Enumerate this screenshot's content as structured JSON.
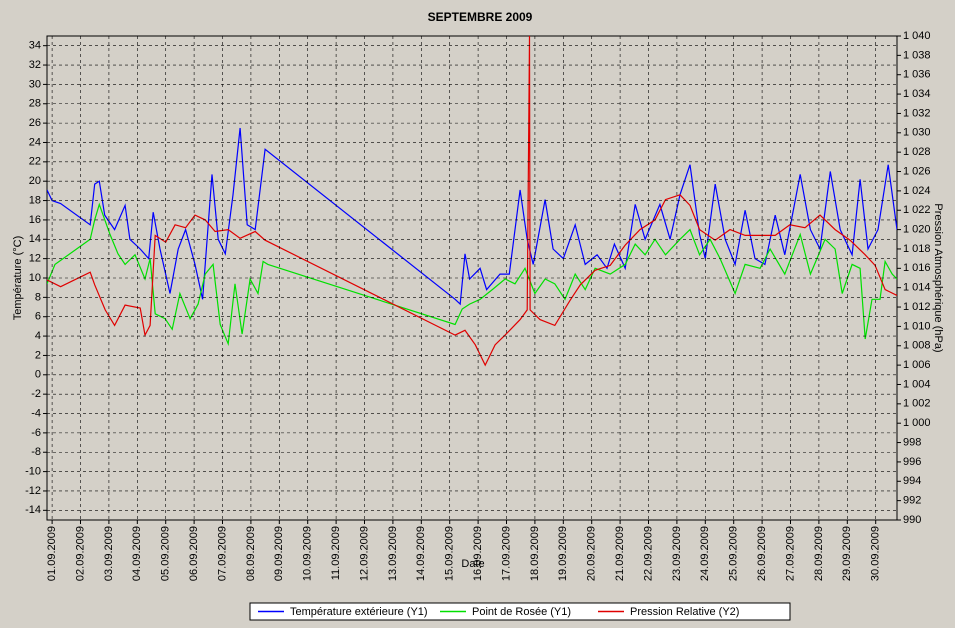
{
  "chart_data": {
    "type": "line",
    "title": "SEPTEMBRE  2009",
    "xlabel": "Date",
    "ylabel": "Température (°C)",
    "y2label": "Pression Atmosphérique (hPa)",
    "grid": true,
    "legend": "bottom",
    "xlim": [
      0.82,
      30.75
    ],
    "ylim": [
      -15,
      35
    ],
    "y2lim": [
      990,
      1040
    ],
    "xticks": [
      {
        "value": 1,
        "label": "01.09.2009"
      },
      {
        "value": 2,
        "label": "02.09.2009"
      },
      {
        "value": 3,
        "label": "03.09.2009"
      },
      {
        "value": 4,
        "label": "04.09.2009"
      },
      {
        "value": 5,
        "label": "05.09.2009"
      },
      {
        "value": 6,
        "label": "06.09.2009"
      },
      {
        "value": 7,
        "label": "07.09.2009"
      },
      {
        "value": 8,
        "label": "08.09.2009"
      },
      {
        "value": 9,
        "label": "09.09.2009"
      },
      {
        "value": 10,
        "label": "10.09.2009"
      },
      {
        "value": 11,
        "label": "11.09.2009"
      },
      {
        "value": 12,
        "label": "12.09.2009"
      },
      {
        "value": 13,
        "label": "13.09.2009"
      },
      {
        "value": 14,
        "label": "14.09.2009"
      },
      {
        "value": 15,
        "label": "15.09.2009"
      },
      {
        "value": 16,
        "label": "16.09.2009"
      },
      {
        "value": 17,
        "label": "17.09.2009"
      },
      {
        "value": 18,
        "label": "18.09.2009"
      },
      {
        "value": 19,
        "label": "19.09.2009"
      },
      {
        "value": 20,
        "label": "20.09.2009"
      },
      {
        "value": 21,
        "label": "21.09.2009"
      },
      {
        "value": 22,
        "label": "22.09.2009"
      },
      {
        "value": 23,
        "label": "23.09.2009"
      },
      {
        "value": 24,
        "label": "24.09.2009"
      },
      {
        "value": 25,
        "label": "25.09.2009"
      },
      {
        "value": 26,
        "label": "26.09.2009"
      },
      {
        "value": 27,
        "label": "27.09.2009"
      },
      {
        "value": 28,
        "label": "28.09.2009"
      },
      {
        "value": 29,
        "label": "29.09.2009"
      },
      {
        "value": 30,
        "label": "30.09.2009"
      }
    ],
    "yticks": [
      34,
      32,
      30,
      28,
      26,
      24,
      22,
      20,
      18,
      16,
      14,
      12,
      10,
      8,
      6,
      4,
      2,
      0,
      -2,
      -4,
      -6,
      -8,
      -10,
      -12,
      -14
    ],
    "y2ticks": [
      {
        "value": 1040,
        "label": "1 040"
      },
      {
        "value": 1038,
        "label": "1 038"
      },
      {
        "value": 1036,
        "label": "1 036"
      },
      {
        "value": 1034,
        "label": "1 034"
      },
      {
        "value": 1032,
        "label": "1 032"
      },
      {
        "value": 1030,
        "label": "1 030"
      },
      {
        "value": 1028,
        "label": "1 028"
      },
      {
        "value": 1026,
        "label": "1 026"
      },
      {
        "value": 1024,
        "label": "1 024"
      },
      {
        "value": 1022,
        "label": "1 022"
      },
      {
        "value": 1020,
        "label": "1 020"
      },
      {
        "value": 1018,
        "label": "1 018"
      },
      {
        "value": 1016,
        "label": "1 016"
      },
      {
        "value": 1014,
        "label": "1 014"
      },
      {
        "value": 1012,
        "label": "1 012"
      },
      {
        "value": 1010,
        "label": "1 010"
      },
      {
        "value": 1008,
        "label": "1 008"
      },
      {
        "value": 1006,
        "label": "1 006"
      },
      {
        "value": 1004,
        "label": "1 004"
      },
      {
        "value": 1002,
        "label": "1 002"
      },
      {
        "value": 1000,
        "label": "1 000"
      },
      998,
      996,
      994,
      992,
      990
    ],
    "series": [
      {
        "name": "Température extérieure (Y1)",
        "color": "#0000ff",
        "axis": "y",
        "x": [
          0.82,
          1.0,
          1.3,
          2.34,
          2.5,
          2.66,
          2.85,
          3.2,
          3.57,
          3.74,
          4.1,
          4.4,
          4.56,
          4.8,
          5.15,
          5.44,
          5.7,
          6.03,
          6.3,
          6.63,
          6.85,
          7.1,
          7.37,
          7.62,
          7.87,
          8.15,
          8.5,
          15.19,
          15.37,
          15.54,
          15.7,
          16.07,
          16.3,
          16.77,
          17.1,
          17.48,
          17.73,
          17.94,
          18.36,
          18.64,
          19.0,
          19.42,
          19.77,
          20.19,
          20.54,
          20.8,
          21.18,
          21.53,
          21.88,
          22.4,
          22.76,
          23.11,
          23.46,
          23.8,
          24.0,
          24.35,
          24.7,
          25.05,
          25.4,
          25.75,
          26.1,
          26.46,
          26.8,
          27.34,
          27.7,
          28.04,
          28.4,
          28.75,
          29.17,
          29.45,
          29.73,
          30.08,
          30.44,
          30.75
        ],
        "values": [
          19.1,
          18,
          17.7,
          15.5,
          19.7,
          20,
          16.5,
          15,
          17.5,
          14,
          13,
          12,
          16.8,
          13,
          8.4,
          13,
          15,
          11.4,
          7.8,
          20.7,
          14,
          12.5,
          18.6,
          25.5,
          15.5,
          15,
          23.3,
          7.8,
          7.3,
          12.5,
          9.9,
          11,
          8.8,
          10.4,
          10.4,
          19.1,
          14,
          11.4,
          18.1,
          13,
          12,
          15.5,
          11.4,
          12.4,
          11,
          13.5,
          11,
          17.6,
          14,
          17.6,
          14,
          18.6,
          21.7,
          14.5,
          12,
          19.7,
          14,
          11.4,
          17,
          12,
          11.4,
          16.5,
          12.4,
          20.7,
          15,
          13,
          21,
          15,
          12.4,
          20.2,
          13,
          15,
          21.7,
          15
        ]
      },
      {
        "name": "Point de Rosée (Y1)",
        "color": "#00e000",
        "axis": "y",
        "x": [
          0.82,
          1.1,
          2.34,
          2.5,
          2.66,
          3.04,
          3.32,
          3.57,
          3.92,
          4.27,
          4.45,
          4.63,
          4.98,
          5.23,
          5.5,
          5.86,
          6.14,
          6.39,
          6.67,
          6.92,
          7.2,
          7.44,
          7.69,
          7.97,
          8.25,
          8.43,
          8.6,
          15.19,
          15.44,
          15.7,
          16.07,
          16.5,
          16.95,
          17.3,
          17.65,
          18.0,
          18.36,
          18.7,
          19.06,
          19.42,
          19.77,
          20.12,
          20.65,
          21.18,
          21.53,
          21.88,
          22.23,
          22.6,
          23.11,
          23.46,
          23.8,
          24.17,
          24.52,
          25.05,
          25.4,
          25.93,
          26.28,
          26.8,
          27.34,
          27.7,
          28.22,
          28.57,
          28.82,
          29.17,
          29.45,
          29.63,
          29.87,
          30.15,
          30.33,
          30.58,
          30.75
        ],
        "values": [
          9.4,
          11.4,
          14,
          16,
          17.6,
          14.5,
          12.5,
          11.4,
          12.4,
          9.9,
          12,
          6.3,
          5.8,
          4.7,
          8.4,
          5.8,
          7.3,
          10.4,
          11.4,
          5.2,
          3.2,
          9.4,
          4.2,
          9.9,
          8.4,
          11.7,
          11.4,
          5.2,
          6.8,
          7.3,
          7.8,
          8.8,
          9.9,
          9.4,
          11,
          8.4,
          9.9,
          9.4,
          7.8,
          10.4,
          8.8,
          11,
          10.4,
          11.4,
          13.5,
          12.4,
          14,
          12.4,
          14,
          15,
          12.4,
          14,
          12,
          8.4,
          11.4,
          11,
          13,
          10.4,
          14.5,
          10.4,
          14,
          13,
          8.4,
          11.4,
          11,
          3.7,
          7.8,
          7.8,
          11.7,
          10.4,
          9.9
        ]
      },
      {
        "name": "Pression Relative (Y2)",
        "color": "#e00000",
        "axis": "y2",
        "x": [
          0.82,
          1.3,
          2.34,
          2.5,
          2.87,
          3.2,
          3.57,
          4.1,
          4.27,
          4.45,
          4.63,
          5.0,
          5.33,
          5.7,
          6.03,
          6.39,
          6.74,
          7.2,
          7.62,
          8.15,
          8.5,
          15.19,
          15.54,
          15.9,
          16.25,
          16.6,
          16.95,
          17.48,
          17.73,
          17.81,
          17.83,
          18.18,
          18.7,
          19.24,
          19.6,
          20.12,
          20.65,
          21.18,
          21.7,
          22.23,
          22.6,
          23.11,
          23.46,
          23.8,
          24.35,
          24.87,
          25.4,
          25.93,
          26.46,
          26.98,
          27.51,
          28.04,
          28.57,
          29.1,
          29.63,
          29.98,
          30.33,
          30.75
        ],
        "values": [
          1014.8,
          1014.1,
          1015.6,
          1014.3,
          1011.7,
          1010.1,
          1012.2,
          1011.9,
          1009.1,
          1010.1,
          1019.4,
          1018.7,
          1020.5,
          1020.2,
          1021.5,
          1021,
          1019.8,
          1020,
          1019.1,
          1019.8,
          1018.9,
          1009.1,
          1009.6,
          1008.1,
          1006,
          1008.1,
          1009.1,
          1010.7,
          1011.7,
          1040,
          1011.7,
          1010.7,
          1010.1,
          1012.7,
          1014.3,
          1015.8,
          1016.3,
          1018.4,
          1020,
          1021,
          1023.1,
          1023.6,
          1022.5,
          1020,
          1018.9,
          1020,
          1019.4,
          1019.4,
          1019.4,
          1020.5,
          1020.2,
          1021.5,
          1020,
          1018.9,
          1017.4,
          1016.3,
          1013.8,
          1013.2
        ]
      }
    ]
  }
}
